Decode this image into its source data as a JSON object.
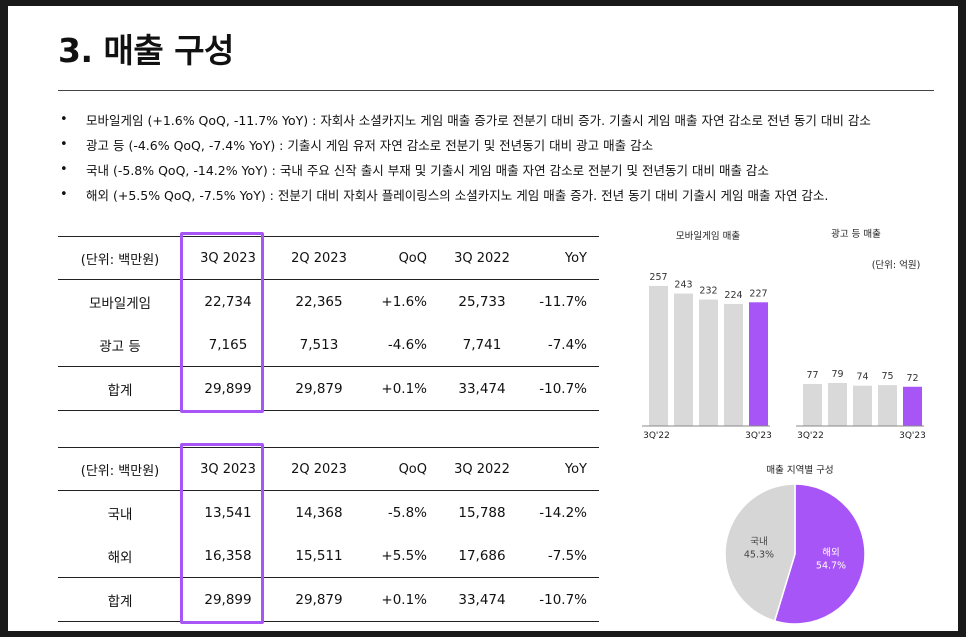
{
  "title": "3. 매출 구성",
  "bullets": [
    "모바일게임 (+1.6% QoQ, -11.7% YoY) : 자회사 소셜카지노 게임 매출 증가로 전분기 대비 증가. 기출시 게임 매출 자연 감소로 전년 동기 대비 감소",
    "광고 등 (-4.6% QoQ, -7.4% YoY) : 기출시 게임 유저 자연 감소로 전분기 및 전년동기 대비 광고 매출 감소",
    "국내 (-5.8% QoQ, -14.2% YoY) : 국내 주요 신작 출시 부재 및 기출시 게임 매출 자연 감소로 전분기 및 전년동기 대비 매출 감소",
    "해외 (+5.5% QoQ, -7.5% YoY) : 전분기 대비 자회사 플레이링스의 소셜카지노 게임 매출 증가. 전년 동기 대비 기출시 게임 매출 자연 감소."
  ],
  "bullet_marker": "•",
  "table1": {
    "headers": [
      "(단위: 백만원)",
      "3Q 2023",
      "2Q 2023",
      "QoQ",
      "3Q 2022",
      "YoY"
    ],
    "rows": [
      [
        "모바일게임",
        "22,734",
        "22,365",
        "+1.6%",
        "25,733",
        "-11.7%"
      ],
      [
        "광고 등",
        "7,165",
        "7,513",
        "-4.6%",
        "7,741",
        "-7.4%"
      ]
    ],
    "total": [
      "합계",
      "29,899",
      "29,879",
      "+0.1%",
      "33,474",
      "-10.7%"
    ]
  },
  "table2": {
    "headers": [
      "(단위: 백만원)",
      "3Q 2023",
      "2Q 2023",
      "QoQ",
      "3Q 2022",
      "YoY"
    ],
    "rows": [
      [
        "국내",
        "13,541",
        "14,368",
        "-5.8%",
        "15,788",
        "-14.2%"
      ],
      [
        "해외",
        "16,358",
        "15,511",
        "+5.5%",
        "17,686",
        "-7.5%"
      ]
    ],
    "total": [
      "합계",
      "29,899",
      "29,879",
      "+0.1%",
      "33,474",
      "-10.7%"
    ]
  },
  "unit_note": "(단위: 억원)",
  "colors": {
    "accent": "#a855f7",
    "bar_grey": "#d9d9d9",
    "pie_grey": "#d6d6d6"
  },
  "chart_data": [
    {
      "type": "bar",
      "title": "모바일게임 매출",
      "values": [
        257,
        243,
        232,
        224,
        227
      ],
      "data_labels": [
        "257",
        "243",
        "232",
        "224",
        "227"
      ],
      "x_tick_labels": [
        "3Q'22",
        "3Q'23"
      ],
      "highlight_last": true
    },
    {
      "type": "bar",
      "title": "광고 등 매출",
      "values": [
        77,
        79,
        74,
        75,
        72
      ],
      "data_labels": [
        "77",
        "79",
        "74",
        "75",
        "72"
      ],
      "x_tick_labels": [
        "3Q'22",
        "3Q'23"
      ],
      "highlight_last": true
    },
    {
      "type": "pie",
      "title": "매출 지역별 구성",
      "slices": [
        {
          "name": "해외",
          "value": 54.7,
          "label": "54.7%"
        },
        {
          "name": "국내",
          "value": 45.3,
          "label": "45.3%"
        }
      ]
    }
  ]
}
